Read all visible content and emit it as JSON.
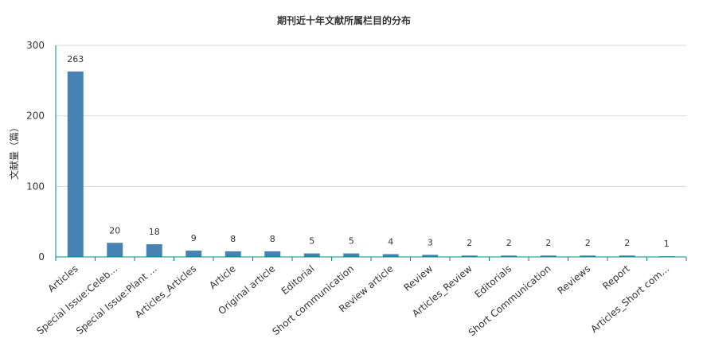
{
  "chart_data": {
    "type": "bar",
    "title": "期刊近十年文献所属栏目的分布",
    "ylabel": "文献量（篇）",
    "xlabel": "",
    "ylim": [
      0,
      300
    ],
    "yticks": [
      0,
      100,
      200,
      300
    ],
    "grid": true,
    "bar_color": "#4682b4",
    "axis_color": "#008b8b",
    "grid_color": "#d9d9d9",
    "categories": [
      "Articles",
      "Special Issue:Celeb...",
      "Special Issue:Plant ...",
      "Articles_Articles",
      "Article",
      "Original article",
      "Editorial",
      "Short communication",
      "Review article",
      "Review",
      "Articles_Review",
      "Editorials",
      "Short Communication",
      "Reviews",
      "Report",
      "Articles_Short com..."
    ],
    "values": [
      263,
      20,
      18,
      9,
      8,
      8,
      5,
      5,
      4,
      3,
      2,
      2,
      2,
      2,
      2,
      1
    ]
  }
}
